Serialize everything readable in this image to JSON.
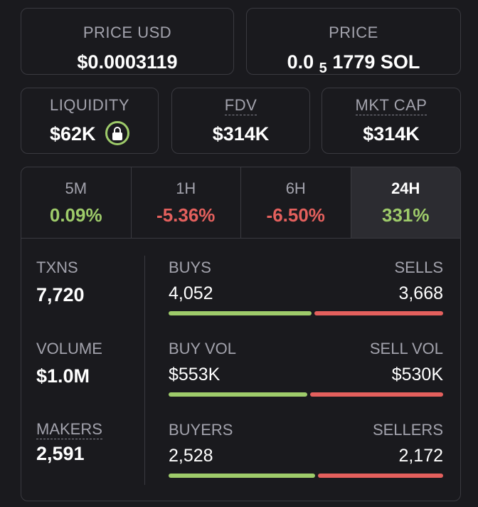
{
  "top": {
    "price_usd": {
      "label": "PRICE USD",
      "value": "$0.0003119"
    },
    "price": {
      "label": "PRICE",
      "value_prefix": "0.0",
      "value_sub": "5",
      "value_suffix": "1779 SOL"
    }
  },
  "metrics": {
    "liquidity": {
      "label": "LIQUIDITY",
      "value": "$62K"
    },
    "fdv": {
      "label": "FDV",
      "value": "$314K"
    },
    "mkt_cap": {
      "label": "MKT CAP",
      "value": "$314K"
    }
  },
  "tabs": [
    {
      "label": "5M",
      "value": "0.09%",
      "trend": "positive"
    },
    {
      "label": "1H",
      "value": "-5.36%",
      "trend": "negative"
    },
    {
      "label": "6H",
      "value": "-6.50%",
      "trend": "negative"
    },
    {
      "label": "24H",
      "value": "331%",
      "trend": "positive",
      "active": true
    }
  ],
  "stats": {
    "txns": {
      "label": "TXNS",
      "value": "7,720"
    },
    "volume": {
      "label": "VOLUME",
      "value": "$1.0M"
    },
    "makers": {
      "label": "MAKERS",
      "value": "2,591"
    }
  },
  "pairs": {
    "txns": {
      "left_label": "BUYS",
      "left_value": "4,052",
      "right_label": "SELLS",
      "right_value": "3,668",
      "buy_fraction": 0.525
    },
    "volume": {
      "left_label": "BUY VOL",
      "left_value": "$553K",
      "right_label": "SELL VOL",
      "right_value": "$530K",
      "buy_fraction": 0.511
    },
    "makers": {
      "left_label": "BUYERS",
      "left_value": "2,528",
      "right_label": "SELLERS",
      "right_value": "2,172",
      "buy_fraction": 0.538
    }
  },
  "colors": {
    "positive": "#9ecb6a",
    "negative": "#e4605d",
    "background": "#1a1a1e",
    "border": "#3a3a40",
    "muted_text": "#a3a3ad"
  }
}
